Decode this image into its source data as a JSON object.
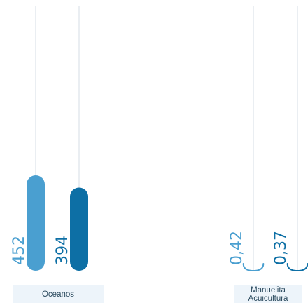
{
  "chart_data": {
    "type": "bar",
    "orientation": "vertical",
    "groups": [
      {
        "category": [
          "Oceanos"
        ],
        "bars": [
          {
            "value": 452,
            "label": "452",
            "color": "#4a9fd0"
          },
          {
            "value": 394,
            "label": "394",
            "color": "#0d6fa5"
          }
        ]
      },
      {
        "category": [
          "Manuelita",
          "Acuicultura"
        ],
        "bars": [
          {
            "value": 0.42,
            "label": "0,42",
            "color": "#4a9fd0"
          },
          {
            "value": 0.37,
            "label": "0,37",
            "color": "#0d6fa5"
          }
        ]
      }
    ],
    "colors": {
      "series_light": "#4a9fd0",
      "series_dark": "#0d6fa5",
      "gridline": "#dde3e8",
      "category_band": "#edf4fa",
      "category_text": "#2b4a5e"
    },
    "legend": "none",
    "grid": false
  }
}
